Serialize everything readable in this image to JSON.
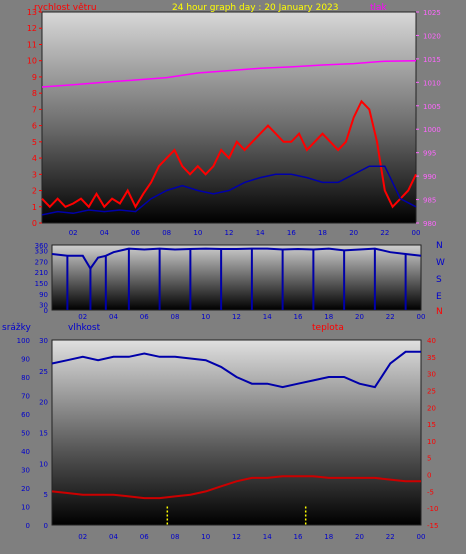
{
  "header": {
    "title": "24 hour graph day : 20 January 2023",
    "left_label": "rychlost větru",
    "right_label": "tlak"
  },
  "lower_header": {
    "left_label": "srážky",
    "mid_label": "vlhkost",
    "right_label": "teplota"
  },
  "compass": [
    "N",
    "W",
    "S",
    "E",
    "N"
  ],
  "colors": {
    "background": "#7f7f7f",
    "wind": "#ff0000",
    "wind_avg": "#0000aa",
    "pressure": "#ff00ff",
    "humidity": "#0000aa",
    "temperature": "#cc0000",
    "rain": "#ffff00",
    "title": "#ffff00",
    "wind_axis": "#ff0000",
    "pressure_axis": "#ff66ff",
    "direction_axis": "#0000cc",
    "humidity_axis": "#0000cc",
    "rain_axis": "#0000cc",
    "temp_axis": "#ff0000"
  },
  "chart_data": [
    {
      "type": "line",
      "title": "24 hour graph day : 20 January 2023",
      "x_ticks": [
        "02",
        "04",
        "06",
        "08",
        "10",
        "12",
        "14",
        "16",
        "18",
        "20",
        "22",
        "00"
      ],
      "y_left": {
        "label": "rychlost větru",
        "range": [
          0,
          13
        ],
        "ticks": [
          "0",
          "1",
          "2",
          "3",
          "4",
          "5",
          "6",
          "7",
          "8",
          "9",
          "10",
          "11",
          "12",
          "13"
        ]
      },
      "y_right": {
        "label": "tlak",
        "range": [
          980,
          1025
        ],
        "ticks": [
          "980",
          "985",
          "990",
          "995",
          "1000",
          "1005",
          "1010",
          "1015",
          "1020",
          "1025"
        ]
      },
      "series": [
        {
          "name": "rychlost větru",
          "axis": "left",
          "x": [
            0,
            0.5,
            1,
            1.5,
            2,
            2.5,
            3,
            3.5,
            4,
            4.5,
            5,
            5.5,
            6,
            6.5,
            7,
            7.5,
            8,
            8.5,
            9,
            9.5,
            10,
            10.5,
            11,
            11.5,
            12,
            12.5,
            13,
            13.5,
            14,
            14.5,
            15,
            15.5,
            16,
            16.5,
            17,
            17.5,
            18,
            18.5,
            19,
            19.5,
            20,
            20.5,
            21,
            21.5,
            22,
            22.5,
            23,
            23.5,
            24
          ],
          "values": [
            1.5,
            1,
            1.5,
            1,
            1.2,
            1.5,
            1,
            1.8,
            1,
            1.5,
            1.2,
            2,
            1,
            1.8,
            2.5,
            3.5,
            4,
            4.5,
            3.5,
            3,
            3.5,
            3,
            3.5,
            4.5,
            4,
            5,
            4.5,
            5,
            5.5,
            6,
            5.5,
            5,
            5,
            5.5,
            4.5,
            5,
            5.5,
            5,
            4.5,
            5,
            6.5,
            7.5,
            7,
            5,
            2,
            1,
            1.5,
            2,
            3
          ]
        },
        {
          "name": "",
          "axis": "left",
          "x": [
            0,
            1,
            2,
            3,
            4,
            5,
            6,
            7,
            8,
            9,
            10,
            11,
            12,
            13,
            14,
            15,
            16,
            17,
            18,
            19,
            20,
            21,
            22,
            23,
            24
          ],
          "values": [
            0.5,
            0.7,
            0.6,
            0.8,
            0.7,
            0.8,
            0.7,
            1.5,
            2,
            2.3,
            2,
            1.8,
            2,
            2.5,
            2.8,
            3,
            3,
            2.8,
            2.5,
            2.5,
            3,
            3.5,
            3.5,
            1.5,
            1
          ]
        },
        {
          "name": "tlak",
          "axis": "right",
          "x": [
            0,
            2,
            4,
            6,
            8,
            10,
            12,
            14,
            16,
            18,
            20,
            22,
            24
          ],
          "values": [
            1009,
            1009.5,
            1010,
            1010.5,
            1011,
            1012,
            1012.5,
            1013,
            1013.3,
            1013.7,
            1014,
            1014.5,
            1014.6
          ]
        }
      ]
    },
    {
      "type": "scatter",
      "x_ticks": [
        "02",
        "04",
        "06",
        "08",
        "10",
        "12",
        "14",
        "16",
        "18",
        "20",
        "22",
        "00"
      ],
      "y_left": {
        "range": [
          0,
          360
        ],
        "ticks": [
          "0",
          "30",
          "90",
          "150",
          "210",
          "270",
          "330",
          "360"
        ]
      },
      "series": [
        {
          "name": "",
          "x": [
            0,
            1,
            2,
            2.5,
            3,
            3.5,
            4,
            5,
            6,
            7,
            8,
            9,
            10,
            11,
            12,
            13,
            14,
            15,
            16,
            17,
            18,
            19,
            20,
            21,
            22,
            23,
            24
          ],
          "values": [
            310,
            300,
            300,
            230,
            290,
            300,
            320,
            340,
            335,
            340,
            335,
            338,
            340,
            338,
            338,
            340,
            340,
            335,
            338,
            335,
            340,
            330,
            335,
            340,
            320,
            310,
            300
          ]
        }
      ]
    },
    {
      "type": "line",
      "x_ticks": [
        "02",
        "04",
        "06",
        "08",
        "10",
        "12",
        "14",
        "16",
        "18",
        "20",
        "22",
        "00"
      ],
      "y_left": {
        "label": "srážky",
        "range": [
          0,
          100
        ],
        "ticks": [
          "0",
          "10",
          "20",
          "30",
          "40",
          "50",
          "60",
          "70",
          "80",
          "90",
          "100"
        ]
      },
      "y_mid": {
        "label": "vlhkost",
        "range": [
          0,
          30
        ],
        "ticks": [
          "0",
          "5",
          "10",
          "15",
          "20",
          "25",
          "30"
        ]
      },
      "y_right": {
        "label": "teplota",
        "range": [
          -15,
          40
        ],
        "ticks": [
          "-15",
          "-10",
          "-5",
          "0",
          "5",
          "10",
          "15",
          "20",
          "25",
          "30",
          "35",
          "40"
        ]
      },
      "series": [
        {
          "name": "vlhkost",
          "axis": "right",
          "x": [
            0,
            1,
            2,
            3,
            4,
            5,
            6,
            7,
            8,
            9,
            10,
            11,
            12,
            13,
            14,
            15,
            16,
            17,
            18,
            19,
            20,
            21,
            22,
            23,
            24
          ],
          "values": [
            33,
            34,
            35,
            34,
            35,
            35,
            36,
            35,
            35,
            34.5,
            34,
            32,
            29,
            27,
            27,
            26,
            27,
            28,
            29,
            29,
            27,
            26,
            33,
            36.5,
            36.5
          ]
        },
        {
          "name": "teplota",
          "axis": "right",
          "x": [
            0,
            1,
            2,
            3,
            4,
            5,
            6,
            7,
            8,
            9,
            10,
            11,
            12,
            13,
            14,
            15,
            16,
            17,
            18,
            19,
            20,
            21,
            22,
            23,
            24
          ],
          "values": [
            -5,
            -5.5,
            -6,
            -6,
            -6,
            -6.5,
            -7,
            -7,
            -6.5,
            -6,
            -5,
            -3.5,
            -2,
            -1,
            -1,
            -0.5,
            -0.5,
            -0.5,
            -1,
            -1,
            -1,
            -1,
            -1.5,
            -2,
            -2
          ]
        },
        {
          "name": "srážky",
          "axis": "left",
          "x": [
            7.5,
            16.5
          ],
          "values": [
            10,
            10
          ]
        }
      ]
    }
  ]
}
